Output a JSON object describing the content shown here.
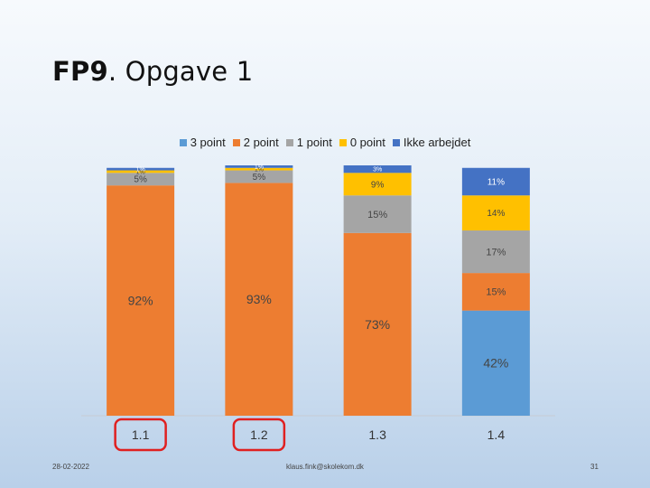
{
  "slide": {
    "title_bold": "FP9",
    "title_rest": ". Opgave 1",
    "date": "28-02-2022",
    "email": "klaus.fink@skolekom.dk",
    "page_number": "31"
  },
  "colors": {
    "3 point": "#5b9bd5",
    "2 point": "#ed7d31",
    "1 point": "#a5a5a5",
    "0 point": "#ffc000",
    "Ikke arbejdet": "#4472c4",
    "highlight": "#e02020"
  },
  "chart_data": {
    "type": "bar",
    "stacked": true,
    "percent": true,
    "categories": [
      "1.1",
      "1.2",
      "1.3",
      "1.4"
    ],
    "highlighted_categories": [
      "1.1",
      "1.2"
    ],
    "series": [
      {
        "name": "3 point",
        "values": [
          0,
          0,
          0,
          42
        ],
        "labels": [
          "",
          "",
          "",
          "42%"
        ]
      },
      {
        "name": "2 point",
        "values": [
          92,
          93,
          73,
          15
        ],
        "labels": [
          "92%",
          "93%",
          "73%",
          "15%"
        ]
      },
      {
        "name": "1 point",
        "values": [
          5,
          5,
          15,
          17
        ],
        "labels": [
          "5%",
          "5%",
          "15%",
          "17%"
        ]
      },
      {
        "name": "0 point",
        "values": [
          1,
          1,
          9,
          14
        ],
        "labels": [
          "1%",
          "1%",
          "9%",
          "14%"
        ]
      },
      {
        "name": "Ikke arbejdet",
        "values": [
          1,
          1,
          3,
          11
        ],
        "labels": [
          "1%",
          "1%",
          "3%",
          "11%"
        ]
      }
    ],
    "ylim": [
      0,
      100
    ],
    "legend_position": "top",
    "grid": false
  }
}
